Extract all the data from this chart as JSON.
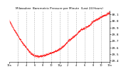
{
  "title": "Milwaukee  Barometric Pressure per Minute  (Last 24 Hours)",
  "bg_color": "#ffffff",
  "plot_bg_color": "#ffffff",
  "line_color": "#ff0000",
  "grid_color": "#aaaaaa",
  "text_color": "#000000",
  "ylim": [
    29.38,
    30.16
  ],
  "yticks": [
    29.4,
    29.5,
    29.6,
    29.7,
    29.8,
    29.9,
    30.0,
    30.1
  ],
  "ytick_labels": [
    "29.4",
    "29.5",
    "29.6",
    "29.7",
    "29.8",
    "29.9",
    "30.0",
    "30.1"
  ],
  "xlim": [
    0,
    1440
  ],
  "x_ctrl": [
    0,
    60,
    120,
    180,
    240,
    300,
    360,
    420,
    480,
    540,
    600,
    660,
    720,
    780,
    840,
    900,
    960,
    1020,
    1080,
    1140,
    1200,
    1260,
    1320,
    1380,
    1440
  ],
  "pressure_shape": [
    30.0,
    29.88,
    29.78,
    29.68,
    29.6,
    29.52,
    29.48,
    29.47,
    29.48,
    29.5,
    29.52,
    29.55,
    29.58,
    29.63,
    29.7,
    29.75,
    29.8,
    29.87,
    29.9,
    29.93,
    30.0,
    30.03,
    30.07,
    30.1,
    30.13
  ],
  "xtick_labels": [
    "12a",
    "2",
    "4",
    "6",
    "8",
    "10",
    "12p",
    "2",
    "4",
    "6",
    "8",
    "10",
    "12a"
  ],
  "num_vgrid": 13
}
